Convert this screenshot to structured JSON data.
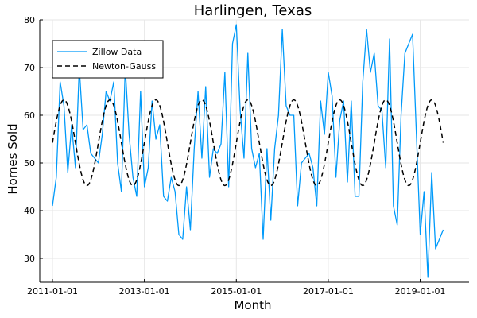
{
  "chart_data": {
    "type": "line",
    "title": "Harlingen, Texas",
    "xlabel": "Month",
    "ylabel": "Homes Sold",
    "xlim": [
      "2011-01-01",
      "2019-12-01"
    ],
    "ylim": [
      25,
      80
    ],
    "x_ticks": [
      "2011-01-01",
      "2013-01-01",
      "2015-01-01",
      "2017-01-01",
      "2019-01-01"
    ],
    "y_ticks": [
      30,
      40,
      50,
      60,
      70,
      80
    ],
    "grid": true,
    "legend_position": "top-left",
    "x_start": "2011-01",
    "x_step": "1 month",
    "series": [
      {
        "name": "Zillow Data",
        "style": "solid",
        "color": "#009AFA",
        "values": [
          41,
          47,
          67,
          62,
          48,
          58,
          49,
          70,
          57,
          58,
          52,
          51,
          50,
          56,
          65,
          63,
          67,
          50,
          44,
          70,
          56,
          47,
          43,
          65,
          45,
          49,
          63,
          55,
          58,
          43,
          42,
          47,
          44,
          35,
          34,
          45,
          36,
          53,
          65,
          51,
          66,
          47,
          53,
          52,
          54,
          69,
          45,
          75,
          79,
          61,
          51,
          73,
          53,
          49,
          52,
          34,
          53,
          38,
          53,
          60,
          78,
          62,
          60,
          60,
          41,
          50,
          51,
          52,
          49,
          41,
          63,
          56,
          69,
          64,
          47,
          59,
          63,
          46,
          63,
          43,
          43,
          67,
          78,
          69,
          73,
          62,
          61,
          49,
          76,
          41,
          37,
          60,
          73,
          75,
          77,
          56,
          35,
          44,
          26,
          48,
          32,
          34,
          36
        ]
      },
      {
        "name": "Newton-Gauss",
        "style": "dashed",
        "color": "#000000",
        "model": {
          "mean": 54.25,
          "amplitude": 9,
          "period_months": 12
        }
      }
    ]
  }
}
